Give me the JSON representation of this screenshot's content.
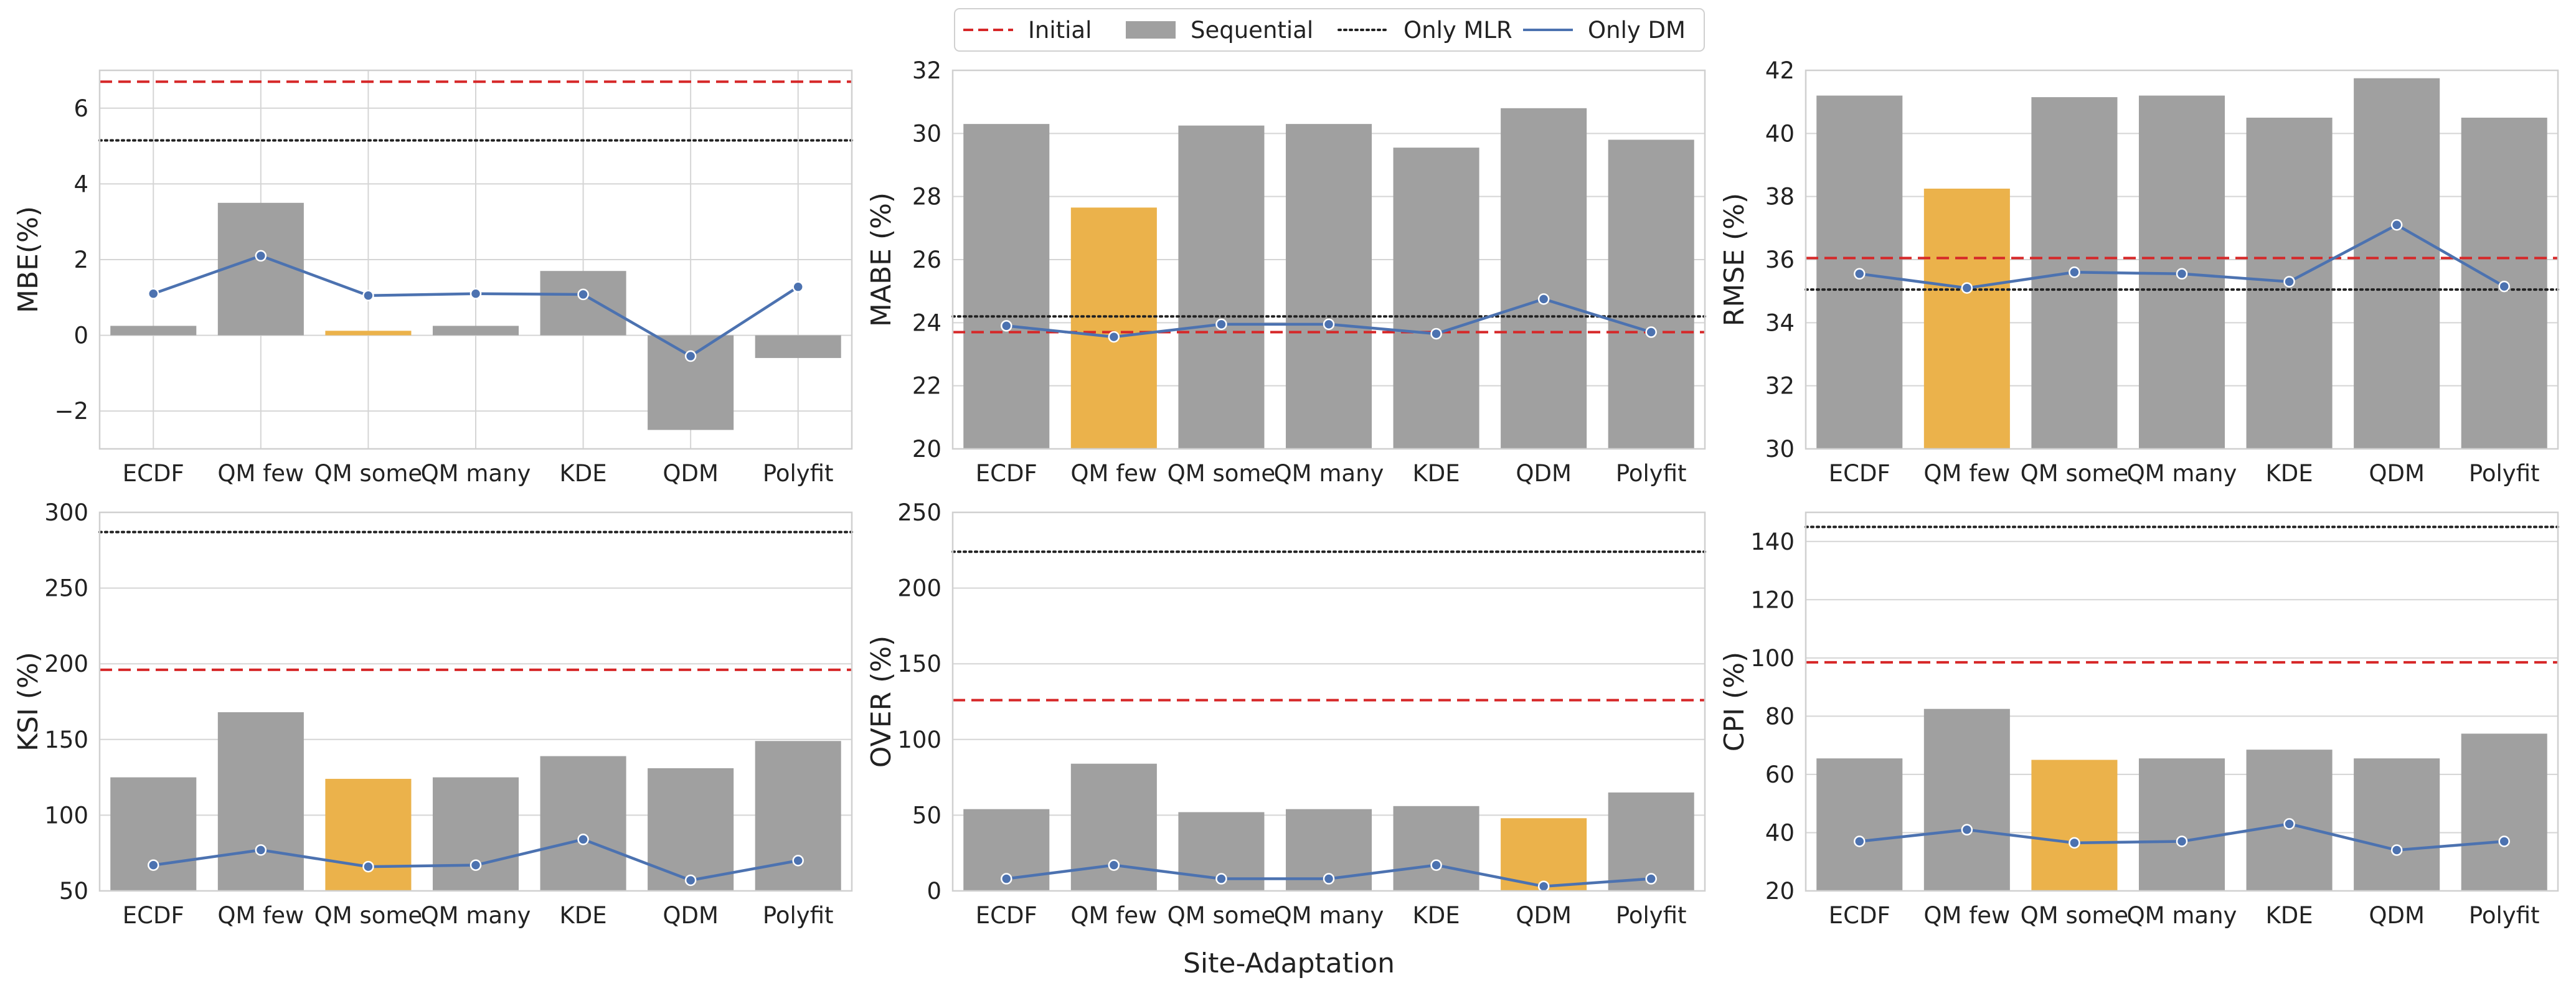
{
  "legend": {
    "placement": "top-center",
    "entries": [
      {
        "label": "Initial",
        "style": "dashed",
        "color": "#d62728"
      },
      {
        "label": "Sequential",
        "style": "patch",
        "color": "#a0a0a0"
      },
      {
        "label": "Only MLR",
        "style": "dotted",
        "color": "#222222"
      },
      {
        "label": "Only DM",
        "style": "line",
        "color": "#4c72b0"
      }
    ]
  },
  "shared_xlabel": "Site-Adaptation",
  "colors": {
    "bar": "#a0a0a0",
    "highlight": "#ebb24b",
    "initial": "#d62728",
    "mlr": "#222222",
    "dm": "#4c72b0",
    "grid": "#d5d5d5",
    "frame": "#d0d0d0"
  },
  "chart_data": [
    {
      "type": "bar",
      "ylabel": "MBE(%)",
      "categories": [
        "ECDF",
        "QM few",
        "QM some",
        "QM many",
        "KDE",
        "QDM",
        "Polyfit"
      ],
      "series": [
        {
          "name": "Sequential",
          "values": [
            0.25,
            3.5,
            0.12,
            0.25,
            1.7,
            -2.5,
            -0.6
          ]
        },
        {
          "name": "Only DM",
          "type": "line",
          "values": [
            1.1,
            2.1,
            1.05,
            1.1,
            1.08,
            -0.55,
            1.28
          ]
        }
      ],
      "highlight_index": 2,
      "hlines": {
        "Initial": 6.7,
        "Only MLR": 5.15
      },
      "ylim": [
        -3,
        7
      ],
      "yticks": [
        -2,
        0,
        2,
        4,
        6
      ],
      "ytick_labels": [
        "−2",
        "0",
        "2",
        "4",
        "6"
      ],
      "vertical_grid": true,
      "grid": true
    },
    {
      "type": "bar",
      "ylabel": "MABE (%)",
      "categories": [
        "ECDF",
        "QM few",
        "QM some",
        "QM many",
        "KDE",
        "QDM",
        "Polyfit"
      ],
      "series": [
        {
          "name": "Sequential",
          "values": [
            30.3,
            27.65,
            30.25,
            30.3,
            29.55,
            30.8,
            29.8
          ]
        },
        {
          "name": "Only DM",
          "type": "line",
          "values": [
            23.9,
            23.55,
            23.95,
            23.95,
            23.65,
            24.75,
            23.7
          ]
        }
      ],
      "highlight_index": 1,
      "hlines": {
        "Initial": 23.7,
        "Only MLR": 24.2
      },
      "ylim": [
        20,
        32
      ],
      "yticks": [
        20,
        22,
        24,
        26,
        28,
        30,
        32
      ],
      "ytick_labels": [
        "20",
        "22",
        "24",
        "26",
        "28",
        "30",
        "32"
      ],
      "vertical_grid": false,
      "grid": true
    },
    {
      "type": "bar",
      "ylabel": "RMSE (%)",
      "categories": [
        "ECDF",
        "QM few",
        "QM some",
        "QM many",
        "KDE",
        "QDM",
        "Polyfit"
      ],
      "series": [
        {
          "name": "Sequential",
          "values": [
            41.2,
            38.25,
            41.15,
            41.2,
            40.5,
            41.75,
            40.5
          ]
        },
        {
          "name": "Only DM",
          "type": "line",
          "values": [
            35.55,
            35.1,
            35.6,
            35.55,
            35.3,
            37.1,
            35.15
          ]
        }
      ],
      "highlight_index": 1,
      "hlines": {
        "Initial": 36.05,
        "Only MLR": 35.05
      },
      "ylim": [
        30,
        42
      ],
      "yticks": [
        30,
        32,
        34,
        36,
        38,
        40,
        42
      ],
      "ytick_labels": [
        "30",
        "32",
        "34",
        "36",
        "38",
        "40",
        "42"
      ],
      "vertical_grid": false,
      "grid": true
    },
    {
      "type": "bar",
      "ylabel": "KSI (%)",
      "categories": [
        "ECDF",
        "QM few",
        "QM some",
        "QM many",
        "KDE",
        "QDM",
        "Polyfit"
      ],
      "series": [
        {
          "name": "Sequential",
          "values": [
            125,
            168,
            124,
            125,
            139,
            131,
            149
          ]
        },
        {
          "name": "Only DM",
          "type": "line",
          "values": [
            67,
            77,
            66,
            67,
            84,
            57,
            70
          ]
        }
      ],
      "highlight_index": 2,
      "hlines": {
        "Initial": 196,
        "Only MLR": 287
      },
      "ylim": [
        50,
        300
      ],
      "yticks": [
        50,
        100,
        150,
        200,
        250,
        300
      ],
      "ytick_labels": [
        "50",
        "100",
        "150",
        "200",
        "250",
        "300"
      ],
      "vertical_grid": false,
      "grid": true
    },
    {
      "type": "bar",
      "ylabel": "OVER (%)",
      "categories": [
        "ECDF",
        "QM few",
        "QM some",
        "QM many",
        "KDE",
        "QDM",
        "Polyfit"
      ],
      "series": [
        {
          "name": "Sequential",
          "values": [
            54,
            84,
            52,
            54,
            56,
            48,
            65
          ]
        },
        {
          "name": "Only DM",
          "type": "line",
          "values": [
            8,
            17,
            8,
            8,
            17,
            3,
            8
          ]
        }
      ],
      "highlight_index": 5,
      "hlines": {
        "Initial": 126,
        "Only MLR": 224
      },
      "ylim": [
        0,
        250
      ],
      "yticks": [
        0,
        50,
        100,
        150,
        200,
        250
      ],
      "ytick_labels": [
        "0",
        "50",
        "100",
        "150",
        "200",
        "250"
      ],
      "vertical_grid": false,
      "grid": true
    },
    {
      "type": "bar",
      "ylabel": "CPI (%)",
      "categories": [
        "ECDF",
        "QM few",
        "QM some",
        "QM many",
        "KDE",
        "QDM",
        "Polyfit"
      ],
      "series": [
        {
          "name": "Sequential",
          "values": [
            65.5,
            82.5,
            65,
            65.5,
            68.5,
            65.5,
            74
          ]
        },
        {
          "name": "Only DM",
          "type": "line",
          "values": [
            37,
            41,
            36.5,
            37,
            43,
            34,
            37
          ]
        }
      ],
      "highlight_index": 2,
      "hlines": {
        "Initial": 98.5,
        "Only MLR": 145
      },
      "ylim": [
        20,
        150
      ],
      "yticks": [
        20,
        40,
        60,
        80,
        100,
        120,
        140
      ],
      "ytick_labels": [
        "20",
        "40",
        "60",
        "80",
        "100",
        "120",
        "140"
      ],
      "vertical_grid": false,
      "grid": true
    }
  ]
}
